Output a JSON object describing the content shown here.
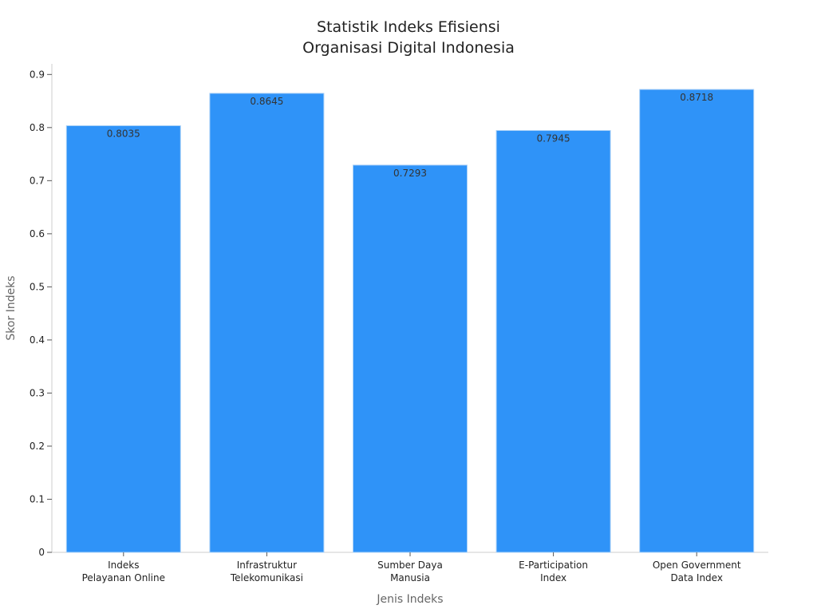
{
  "chart_data": {
    "type": "bar",
    "title_lines": [
      "Statistik Indeks Efisiensi",
      "Organisasi Digital Indonesia"
    ],
    "xlabel": "Jenis Indeks",
    "ylabel": "Skor Indeks",
    "categories": [
      [
        "Indeks",
        "Pelayanan Online"
      ],
      [
        "Infrastruktur",
        "Telekomunikasi"
      ],
      [
        "Sumber Daya",
        "Manusia"
      ],
      [
        "E-Participation",
        "Index"
      ],
      [
        "Open Government",
        "Data Index"
      ]
    ],
    "values": [
      0.8035,
      0.8645,
      0.7293,
      0.7945,
      0.8718
    ],
    "value_labels": [
      "0.8035",
      "0.8645",
      "0.7293",
      "0.7945",
      "0.8718"
    ],
    "ylim": [
      0,
      0.92
    ],
    "yticks": [
      0,
      0.1,
      0.2,
      0.3,
      0.4,
      0.5,
      0.6,
      0.7,
      0.8,
      0.9
    ],
    "ytick_labels": [
      "0",
      "0.1",
      "0.2",
      "0.3",
      "0.4",
      "0.5",
      "0.6",
      "0.7",
      "0.8",
      "0.9"
    ],
    "grid": false,
    "legend": "none",
    "bar_color": "#2f93f8",
    "bar_edge_color": "#a9d0f7",
    "axis_color": "#cccccc"
  }
}
